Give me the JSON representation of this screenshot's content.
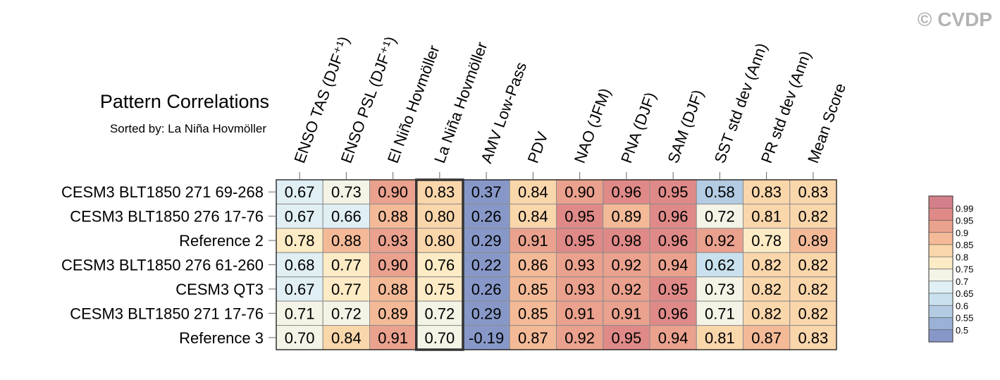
{
  "watermark": "© CVDP",
  "chart_data": {
    "type": "heatmap",
    "title": "Pattern Correlations",
    "subtitle": "Sorted by: La Niña Hovmöller",
    "columns": [
      "ENSO TAS (DJF⁺¹)",
      "ENSO PSL (DJF⁺¹)",
      "El Niño Hovmöller",
      "La Niña Hovmöller",
      "AMV Low-Pass",
      "PDV",
      "NAO (JFM)",
      "PNA (DJF)",
      "SAM (DJF)",
      "SST std dev (Ann)",
      "PR std dev (Ann)",
      "Mean Score"
    ],
    "rows": [
      "CESM3 BLT1850 271 69-268",
      "CESM3 BLT1850 276 17-76",
      "Reference 2",
      "CESM3 BLT1850 276 61-260",
      "CESM3 QT3",
      "CESM3 BLT1850 271 17-76",
      "Reference 3"
    ],
    "values": [
      [
        0.67,
        0.73,
        0.9,
        0.83,
        0.37,
        0.84,
        0.9,
        0.96,
        0.95,
        0.58,
        0.83,
        0.83
      ],
      [
        0.67,
        0.66,
        0.88,
        0.8,
        0.26,
        0.84,
        0.95,
        0.89,
        0.96,
        0.72,
        0.81,
        0.82
      ],
      [
        0.78,
        0.88,
        0.93,
        0.8,
        0.29,
        0.91,
        0.95,
        0.98,
        0.96,
        0.92,
        0.78,
        0.89
      ],
      [
        0.68,
        0.77,
        0.9,
        0.76,
        0.22,
        0.86,
        0.93,
        0.92,
        0.94,
        0.62,
        0.82,
        0.82
      ],
      [
        0.67,
        0.77,
        0.88,
        0.75,
        0.26,
        0.85,
        0.93,
        0.92,
        0.95,
        0.73,
        0.82,
        0.82
      ],
      [
        0.71,
        0.72,
        0.89,
        0.72,
        0.29,
        0.85,
        0.91,
        0.91,
        0.96,
        0.71,
        0.82,
        0.82
      ],
      [
        0.7,
        0.84,
        0.91,
        0.7,
        -0.19,
        0.87,
        0.92,
        0.95,
        0.94,
        0.81,
        0.87,
        0.83
      ]
    ],
    "value_labels": [
      [
        "0.67",
        "0.73",
        "0.90",
        "0.83",
        "0.37",
        "0.84",
        "0.90",
        "0.96",
        "0.95",
        "0.58",
        "0.83",
        "0.83"
      ],
      [
        "0.67",
        "0.66",
        "0.88",
        "0.80",
        "0.26",
        "0.84",
        "0.95",
        "0.89",
        "0.96",
        "0.72",
        "0.81",
        "0.82"
      ],
      [
        "0.78",
        "0.88",
        "0.93",
        "0.80",
        "0.29",
        "0.91",
        "0.95",
        "0.98",
        "0.96",
        "0.92",
        "0.78",
        "0.89"
      ],
      [
        "0.68",
        "0.77",
        "0.90",
        "0.76",
        "0.22",
        "0.86",
        "0.93",
        "0.92",
        "0.94",
        "0.62",
        "0.82",
        "0.82"
      ],
      [
        "0.67",
        "0.77",
        "0.88",
        "0.75",
        "0.26",
        "0.85",
        "0.93",
        "0.92",
        "0.95",
        "0.73",
        "0.82",
        "0.82"
      ],
      [
        "0.71",
        "0.72",
        "0.89",
        "0.72",
        "0.29",
        "0.85",
        "0.91",
        "0.91",
        "0.96",
        "0.71",
        "0.82",
        "0.82"
      ],
      [
        "0.70",
        "0.84",
        "0.91",
        "0.70",
        "-0.19",
        "0.87",
        "0.92",
        "0.95",
        "0.94",
        "0.81",
        "0.87",
        "0.83"
      ]
    ],
    "highlighted_column": "La Niña Hovmöller",
    "colorbar": {
      "labels": [
        "0.99",
        "0.95",
        "0.9",
        "0.85",
        "0.8",
        "0.75",
        "0.7",
        "0.65",
        "0.6",
        "0.55",
        "0.5"
      ],
      "bins": [
        {
          "min": 0.99,
          "max": 1.0,
          "color": "#d4808a"
        },
        {
          "min": 0.95,
          "max": 0.99,
          "color": "#df8a88"
        },
        {
          "min": 0.9,
          "max": 0.95,
          "color": "#eaa18e"
        },
        {
          "min": 0.85,
          "max": 0.9,
          "color": "#f4ba98"
        },
        {
          "min": 0.8,
          "max": 0.85,
          "color": "#fad6ab"
        },
        {
          "min": 0.75,
          "max": 0.8,
          "color": "#fcebc5"
        },
        {
          "min": 0.7,
          "max": 0.75,
          "color": "#f3f3e6"
        },
        {
          "min": 0.65,
          "max": 0.7,
          "color": "#e0eff4"
        },
        {
          "min": 0.6,
          "max": 0.65,
          "color": "#c9e1ee"
        },
        {
          "min": 0.55,
          "max": 0.6,
          "color": "#b3cce3"
        },
        {
          "min": 0.5,
          "max": 0.55,
          "color": "#9bb1d7"
        },
        {
          "min": -1.0,
          "max": 0.5,
          "color": "#8798c8"
        }
      ]
    },
    "legend_position": "right"
  }
}
